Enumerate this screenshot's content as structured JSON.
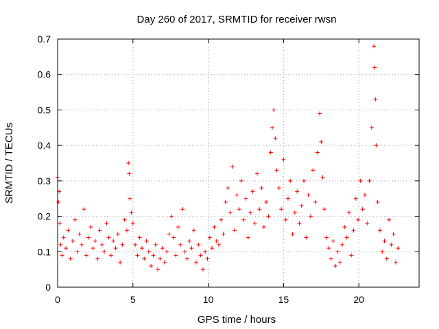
{
  "chart_data": {
    "type": "scatter",
    "title": "Day 260 of 2017, SRMTID for receiver rwsn",
    "xlabel": "GPS time / hours",
    "ylabel": "SRMTID / TECUs",
    "xlim": [
      0,
      24
    ],
    "ylim": [
      0,
      0.7
    ],
    "xticks": [
      0,
      5,
      10,
      15,
      20
    ],
    "xtick_labels": [
      "0",
      "5",
      "10",
      "15",
      "20"
    ],
    "yticks": [
      0,
      0.1,
      0.2,
      0.3,
      0.4,
      0.5,
      0.6,
      0.7
    ],
    "ytick_labels": [
      "0",
      "0.1",
      "0.2",
      "0.3",
      "0.4",
      "0.5",
      "0.6",
      "0.7"
    ],
    "grid": true,
    "marker": "+",
    "series": [
      {
        "name": "rwsn",
        "color": "#ff0000",
        "x": [
          0.0,
          0.05,
          0.1,
          0.15,
          0.2,
          0.3,
          0.4,
          0.55,
          0.7,
          0.85,
          1.0,
          1.15,
          1.3,
          1.45,
          1.6,
          1.75,
          1.9,
          2.05,
          2.2,
          2.35,
          2.5,
          2.65,
          2.8,
          2.95,
          3.1,
          3.25,
          3.4,
          3.55,
          3.7,
          3.85,
          4.0,
          4.15,
          4.3,
          4.45,
          4.6,
          4.7,
          4.75,
          4.8,
          4.9,
          5.0,
          5.15,
          5.3,
          5.45,
          5.6,
          5.75,
          5.9,
          6.05,
          6.2,
          6.35,
          6.5,
          6.65,
          6.8,
          6.95,
          7.1,
          7.25,
          7.4,
          7.55,
          7.7,
          7.85,
          8.0,
          8.15,
          8.3,
          8.45,
          8.6,
          8.75,
          8.9,
          9.05,
          9.2,
          9.35,
          9.5,
          9.65,
          9.8,
          9.95,
          10.1,
          10.25,
          10.4,
          10.55,
          10.7,
          10.85,
          11.0,
          11.15,
          11.3,
          11.45,
          11.6,
          11.75,
          11.9,
          12.05,
          12.2,
          12.35,
          12.5,
          12.65,
          12.8,
          12.95,
          13.1,
          13.25,
          13.4,
          13.55,
          13.7,
          13.85,
          14.0,
          14.15,
          14.25,
          14.35,
          14.45,
          14.55,
          14.7,
          14.85,
          15.0,
          15.15,
          15.3,
          15.45,
          15.6,
          15.75,
          15.9,
          16.05,
          16.2,
          16.35,
          16.5,
          16.65,
          16.8,
          16.95,
          17.1,
          17.25,
          17.4,
          17.5,
          17.6,
          17.7,
          17.85,
          18.0,
          18.15,
          18.3,
          18.45,
          18.6,
          18.75,
          18.9,
          19.05,
          19.2,
          19.35,
          19.5,
          19.65,
          19.8,
          19.95,
          20.1,
          20.25,
          20.4,
          20.55,
          20.7,
          20.85,
          21.0,
          21.05,
          21.1,
          21.15,
          21.25,
          21.4,
          21.55,
          21.7,
          21.85,
          22.0,
          22.15,
          22.3,
          22.45,
          22.6
        ],
        "y": [
          0.31,
          0.24,
          0.27,
          0.18,
          0.12,
          0.09,
          0.14,
          0.11,
          0.16,
          0.08,
          0.13,
          0.19,
          0.1,
          0.15,
          0.12,
          0.22,
          0.09,
          0.14,
          0.17,
          0.11,
          0.13,
          0.08,
          0.16,
          0.12,
          0.1,
          0.18,
          0.14,
          0.09,
          0.13,
          0.11,
          0.15,
          0.07,
          0.12,
          0.19,
          0.16,
          0.35,
          0.32,
          0.25,
          0.21,
          0.18,
          0.12,
          0.09,
          0.14,
          0.11,
          0.08,
          0.13,
          0.1,
          0.06,
          0.09,
          0.12,
          0.05,
          0.08,
          0.11,
          0.07,
          0.1,
          0.15,
          0.2,
          0.14,
          0.09,
          0.17,
          0.12,
          0.22,
          0.1,
          0.08,
          0.13,
          0.11,
          0.16,
          0.07,
          0.12,
          0.09,
          0.05,
          0.1,
          0.08,
          0.14,
          0.11,
          0.17,
          0.13,
          0.12,
          0.19,
          0.15,
          0.24,
          0.28,
          0.21,
          0.34,
          0.16,
          0.26,
          0.22,
          0.3,
          0.19,
          0.25,
          0.14,
          0.21,
          0.27,
          0.18,
          0.32,
          0.22,
          0.28,
          0.17,
          0.24,
          0.2,
          0.38,
          0.45,
          0.5,
          0.42,
          0.33,
          0.28,
          0.22,
          0.36,
          0.19,
          0.25,
          0.3,
          0.15,
          0.21,
          0.27,
          0.18,
          0.23,
          0.3,
          0.14,
          0.26,
          0.2,
          0.33,
          0.24,
          0.38,
          0.49,
          0.41,
          0.31,
          0.22,
          0.14,
          0.11,
          0.08,
          0.13,
          0.06,
          0.1,
          0.07,
          0.12,
          0.17,
          0.14,
          0.21,
          0.09,
          0.16,
          0.25,
          0.19,
          0.3,
          0.22,
          0.26,
          0.18,
          0.3,
          0.45,
          0.68,
          0.62,
          0.53,
          0.4,
          0.24,
          0.16,
          0.1,
          0.13,
          0.08,
          0.19,
          0.12,
          0.15,
          0.07,
          0.11
        ]
      }
    ]
  }
}
